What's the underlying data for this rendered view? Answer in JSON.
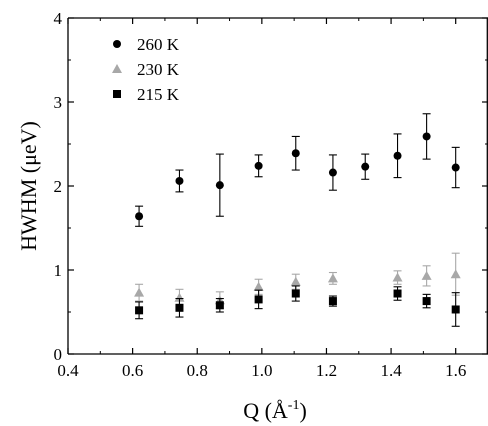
{
  "chart_data": {
    "type": "scatter",
    "xlabel": "Q (Å",
    "xlabel_sup": "-1",
    "xlabel_close": ")",
    "ylabel": "HWHM (μeV)",
    "xlim": [
      0.4,
      1.7
    ],
    "ylim": [
      0,
      4
    ],
    "x_ticks": [
      0.4,
      0.6,
      0.8,
      1.0,
      1.2,
      1.4,
      1.6
    ],
    "x_tick_labels": [
      "0.4",
      "0.6",
      "0.8",
      "1.0",
      "1.2",
      "1.4",
      "1.6"
    ],
    "y_ticks": [
      0,
      1,
      2,
      3,
      4
    ],
    "y_tick_labels": [
      "0",
      "1",
      "2",
      "3",
      "4"
    ],
    "grid": false,
    "legend_position": "top-left",
    "series": [
      {
        "name": "260 K",
        "marker": "circle",
        "color": "#000000",
        "points": [
          {
            "x": 0.62,
            "y": 1.64,
            "err": 0.12
          },
          {
            "x": 0.745,
            "y": 2.06,
            "err": 0.13
          },
          {
            "x": 0.87,
            "y": 2.01,
            "err": 0.37
          },
          {
            "x": 0.99,
            "y": 2.24,
            "err": 0.13
          },
          {
            "x": 1.105,
            "y": 2.39,
            "err": 0.2
          },
          {
            "x": 1.22,
            "y": 2.16,
            "err": 0.21
          },
          {
            "x": 1.32,
            "y": 2.23,
            "err": 0.15
          },
          {
            "x": 1.42,
            "y": 2.36,
            "err": 0.26
          },
          {
            "x": 1.51,
            "y": 2.59,
            "err": 0.27
          },
          {
            "x": 1.6,
            "y": 2.22,
            "err": 0.24
          }
        ]
      },
      {
        "name": "230 K",
        "marker": "triangle",
        "color": "#a8a8a8",
        "points": [
          {
            "x": 0.62,
            "y": 0.73,
            "err": 0.1
          },
          {
            "x": 0.745,
            "y": 0.67,
            "err": 0.1
          },
          {
            "x": 0.87,
            "y": 0.64,
            "err": 0.1
          },
          {
            "x": 0.99,
            "y": 0.8,
            "err": 0.09
          },
          {
            "x": 1.105,
            "y": 0.86,
            "err": 0.09
          },
          {
            "x": 1.22,
            "y": 0.9,
            "err": 0.07
          },
          {
            "x": 1.42,
            "y": 0.91,
            "err": 0.08
          },
          {
            "x": 1.51,
            "y": 0.93,
            "err": 0.12
          },
          {
            "x": 1.6,
            "y": 0.95,
            "err": 0.25
          }
        ]
      },
      {
        "name": "215 K",
        "marker": "square",
        "color": "#000000",
        "points": [
          {
            "x": 0.62,
            "y": 0.52,
            "err": 0.1
          },
          {
            "x": 0.745,
            "y": 0.55,
            "err": 0.11
          },
          {
            "x": 0.87,
            "y": 0.58,
            "err": 0.08
          },
          {
            "x": 0.99,
            "y": 0.65,
            "err": 0.11
          },
          {
            "x": 1.105,
            "y": 0.72,
            "err": 0.09
          },
          {
            "x": 1.22,
            "y": 0.63,
            "err": 0.06
          },
          {
            "x": 1.42,
            "y": 0.72,
            "err": 0.08
          },
          {
            "x": 1.51,
            "y": 0.63,
            "err": 0.08
          },
          {
            "x": 1.6,
            "y": 0.53,
            "err": 0.2
          }
        ]
      }
    ]
  }
}
